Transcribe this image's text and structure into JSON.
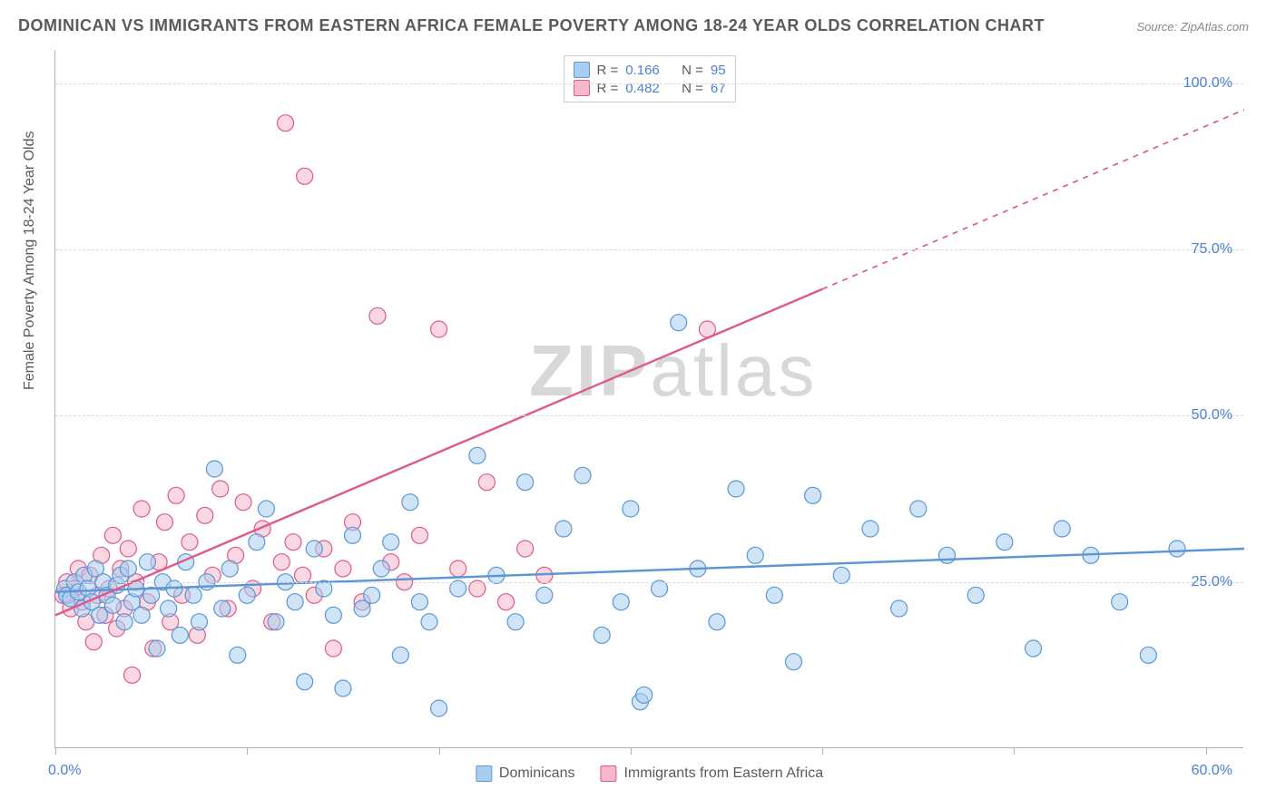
{
  "title": "DOMINICAN VS IMMIGRANTS FROM EASTERN AFRICA FEMALE POVERTY AMONG 18-24 YEAR OLDS CORRELATION CHART",
  "source": "Source: ZipAtlas.com",
  "ylabel": "Female Poverty Among 18-24 Year Olds",
  "watermark": "ZIPatlas",
  "chart": {
    "type": "scatter",
    "xlim": [
      0,
      62
    ],
    "ylim": [
      0,
      105
    ],
    "xtick_positions": [
      0,
      10,
      20,
      30,
      40,
      50,
      60
    ],
    "xtick_labels": [
      "0.0%",
      "",
      "",
      "",
      "",
      "",
      "60.0%"
    ],
    "ytick_positions": [
      25,
      50,
      75,
      100
    ],
    "ytick_labels": [
      "25.0%",
      "50.0%",
      "75.0%",
      "100.0%"
    ],
    "background_color": "#ffffff",
    "grid_color": "#d8d8d8",
    "marker_radius": 9,
    "marker_stroke_width": 1.2,
    "line_width": 2.4
  },
  "series": [
    {
      "key": "dominicans",
      "label": "Dominicans",
      "fill_color": "#a9cdf0",
      "stroke_color": "#5a96d6",
      "fill_opacity": 0.55,
      "R": "0.166",
      "N": "95",
      "trend": {
        "x1": 0,
        "y1": 23.5,
        "x2": 62,
        "y2": 30.0,
        "dash_from_x": 62
      },
      "points": [
        [
          0.5,
          24
        ],
        [
          0.6,
          23
        ],
        [
          0.8,
          22.5
        ],
        [
          1,
          25
        ],
        [
          1.2,
          23.5
        ],
        [
          1.4,
          21
        ],
        [
          1.5,
          26
        ],
        [
          1.7,
          24
        ],
        [
          1.9,
          22
        ],
        [
          2.1,
          27
        ],
        [
          2.3,
          20
        ],
        [
          2.5,
          25
        ],
        [
          2.7,
          23
        ],
        [
          3.0,
          21.5
        ],
        [
          3.2,
          24.5
        ],
        [
          3.4,
          26
        ],
        [
          3.6,
          19
        ],
        [
          3.8,
          27
        ],
        [
          4.0,
          22
        ],
        [
          4.2,
          24
        ],
        [
          4.5,
          20
        ],
        [
          4.8,
          28
        ],
        [
          5.0,
          23
        ],
        [
          5.3,
          15
        ],
        [
          5.6,
          25
        ],
        [
          5.9,
          21
        ],
        [
          6.2,
          24
        ],
        [
          6.5,
          17
        ],
        [
          6.8,
          28
        ],
        [
          7.2,
          23
        ],
        [
          7.5,
          19
        ],
        [
          7.9,
          25
        ],
        [
          8.3,
          42
        ],
        [
          8.7,
          21
        ],
        [
          9.1,
          27
        ],
        [
          9.5,
          14
        ],
        [
          10.0,
          23
        ],
        [
          10.5,
          31
        ],
        [
          11.0,
          36
        ],
        [
          11.5,
          19
        ],
        [
          12.0,
          25
        ],
        [
          12.5,
          22
        ],
        [
          13.0,
          10
        ],
        [
          13.5,
          30
        ],
        [
          14.0,
          24
        ],
        [
          14.5,
          20
        ],
        [
          15.0,
          9
        ],
        [
          15.5,
          32
        ],
        [
          16.0,
          21
        ],
        [
          16.5,
          23
        ],
        [
          17.0,
          27
        ],
        [
          17.5,
          31
        ],
        [
          18.0,
          14
        ],
        [
          18.5,
          37
        ],
        [
          19.0,
          22
        ],
        [
          19.5,
          19
        ],
        [
          20.0,
          6
        ],
        [
          21.0,
          24
        ],
        [
          22.0,
          44
        ],
        [
          23.0,
          26
        ],
        [
          24.0,
          19
        ],
        [
          24.5,
          40
        ],
        [
          25.5,
          23
        ],
        [
          26.5,
          33
        ],
        [
          27.5,
          41
        ],
        [
          28.5,
          17
        ],
        [
          29.5,
          22
        ],
        [
          30.0,
          36
        ],
        [
          30.5,
          7
        ],
        [
          30.7,
          8
        ],
        [
          31.5,
          24
        ],
        [
          32.5,
          64
        ],
        [
          33.5,
          27
        ],
        [
          34.5,
          19
        ],
        [
          35.5,
          39
        ],
        [
          36.5,
          29
        ],
        [
          37.5,
          23
        ],
        [
          38.5,
          13
        ],
        [
          39.5,
          38
        ],
        [
          41.0,
          26
        ],
        [
          42.5,
          33
        ],
        [
          44.0,
          21
        ],
        [
          45.0,
          36
        ],
        [
          46.5,
          29
        ],
        [
          48.0,
          23
        ],
        [
          49.5,
          31
        ],
        [
          51.0,
          15
        ],
        [
          52.5,
          33
        ],
        [
          54.0,
          29
        ],
        [
          55.5,
          22
        ],
        [
          57.0,
          14
        ],
        [
          58.5,
          30
        ]
      ]
    },
    {
      "key": "eastern_africa",
      "label": "Immigrants from Eastern Africa",
      "fill_color": "#f5b8c8",
      "stroke_color": "#e0588b",
      "fill_opacity": 0.55,
      "R": "0.482",
      "N": "67",
      "trend": {
        "x1": 0,
        "y1": 20.0,
        "x2": 62,
        "y2": 96.0,
        "dash_from_x": 40
      },
      "points": [
        [
          0.4,
          23
        ],
        [
          0.6,
          25
        ],
        [
          0.8,
          21
        ],
        [
          1.0,
          24
        ],
        [
          1.2,
          27
        ],
        [
          1.4,
          22
        ],
        [
          1.6,
          19
        ],
        [
          1.8,
          26
        ],
        [
          2.0,
          16
        ],
        [
          2.2,
          23
        ],
        [
          2.4,
          29
        ],
        [
          2.6,
          20
        ],
        [
          2.8,
          24
        ],
        [
          3.0,
          32
        ],
        [
          3.2,
          18
        ],
        [
          3.4,
          27
        ],
        [
          3.6,
          21
        ],
        [
          3.8,
          30
        ],
        [
          4.0,
          11
        ],
        [
          4.2,
          25
        ],
        [
          4.5,
          36
        ],
        [
          4.8,
          22
        ],
        [
          5.1,
          15
        ],
        [
          5.4,
          28
        ],
        [
          5.7,
          34
        ],
        [
          6.0,
          19
        ],
        [
          6.3,
          38
        ],
        [
          6.6,
          23
        ],
        [
          7.0,
          31
        ],
        [
          7.4,
          17
        ],
        [
          7.8,
          35
        ],
        [
          8.2,
          26
        ],
        [
          8.6,
          39
        ],
        [
          9.0,
          21
        ],
        [
          9.4,
          29
        ],
        [
          9.8,
          37
        ],
        [
          10.3,
          24
        ],
        [
          10.8,
          33
        ],
        [
          11.3,
          19
        ],
        [
          11.8,
          28
        ],
        [
          12.0,
          94
        ],
        [
          12.4,
          31
        ],
        [
          12.9,
          26
        ],
        [
          13.0,
          86
        ],
        [
          13.5,
          23
        ],
        [
          14.0,
          30
        ],
        [
          14.5,
          15
        ],
        [
          15.0,
          27
        ],
        [
          15.5,
          34
        ],
        [
          16.0,
          22
        ],
        [
          16.8,
          65
        ],
        [
          17.5,
          28
        ],
        [
          18.2,
          25
        ],
        [
          19.0,
          32
        ],
        [
          20.0,
          63
        ],
        [
          21.0,
          27
        ],
        [
          22.0,
          24
        ],
        [
          22.5,
          40
        ],
        [
          23.5,
          22
        ],
        [
          24.5,
          30
        ],
        [
          25.5,
          26
        ],
        [
          34.0,
          63
        ]
      ]
    }
  ],
  "legend_top": {
    "r_label": "R =",
    "n_label": "N ="
  },
  "legend_bottom_labels": {
    "dominicans": "Dominicans",
    "eastern_africa": "Immigrants from Eastern Africa"
  }
}
